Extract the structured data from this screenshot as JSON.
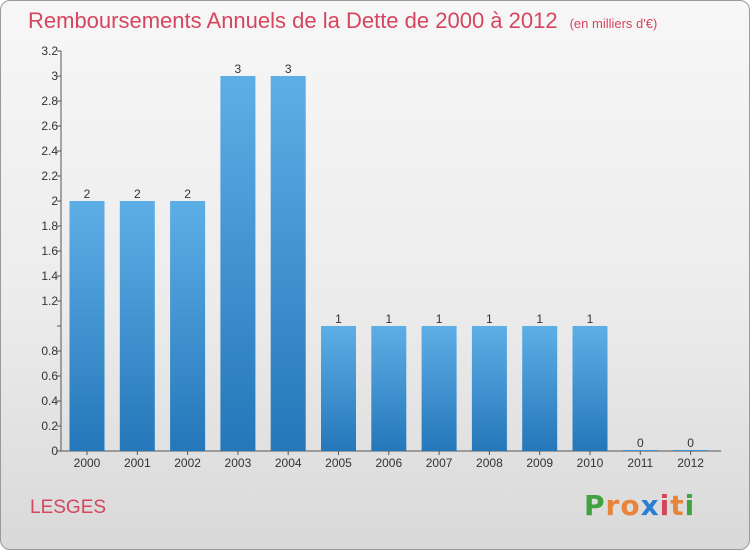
{
  "header": {
    "title": "Remboursements Annuels de la Dette de 2000 à 2012",
    "unit": "(en milliers d'€)"
  },
  "footer": {
    "commune": "LESGES",
    "logo": {
      "letters": [
        "P",
        "r",
        "o",
        "x",
        "i",
        "t",
        "i"
      ],
      "colors": [
        "#3fa33f",
        "#e8843a",
        "#e8843a",
        "#2b7fd0",
        "#d6455e",
        "#e8843a",
        "#3fa33f"
      ]
    }
  },
  "colors": {
    "bar_top": "#5eaee6",
    "bar_bottom": "#2477b9",
    "title": "#d6455e"
  },
  "chart_data": {
    "type": "bar",
    "title": "Remboursements Annuels de la Dette de 2000 à 2012",
    "xlabel": "",
    "ylabel": "",
    "categories": [
      "2000",
      "2001",
      "2002",
      "2003",
      "2004",
      "2005",
      "2006",
      "2007",
      "2008",
      "2009",
      "2010",
      "2011",
      "2012"
    ],
    "values": [
      2,
      2,
      2,
      3,
      3,
      1,
      1,
      1,
      1,
      1,
      1,
      0,
      0
    ],
    "data_labels": [
      "2",
      "2",
      "2",
      "3",
      "3",
      "1",
      "1",
      "1",
      "1",
      "1",
      "1",
      "0",
      "0"
    ],
    "ylim": [
      0,
      3.2
    ],
    "yticks": [
      0,
      0.2,
      0.4,
      0.6,
      0.8,
      1,
      1.2,
      1.4,
      1.6,
      1.8,
      2,
      2.2,
      2.4,
      2.6,
      2.8,
      3,
      3.2
    ],
    "ytick_labels": [
      "0",
      "0.2",
      "0.4",
      "0.6",
      "0.8",
      "",
      "1.2",
      "1.4",
      "1.6",
      "1.8",
      "2",
      "2.2",
      "2.4",
      "2.6",
      "2.8",
      "3",
      "3.2"
    ],
    "grid": false,
    "legend": "none"
  }
}
